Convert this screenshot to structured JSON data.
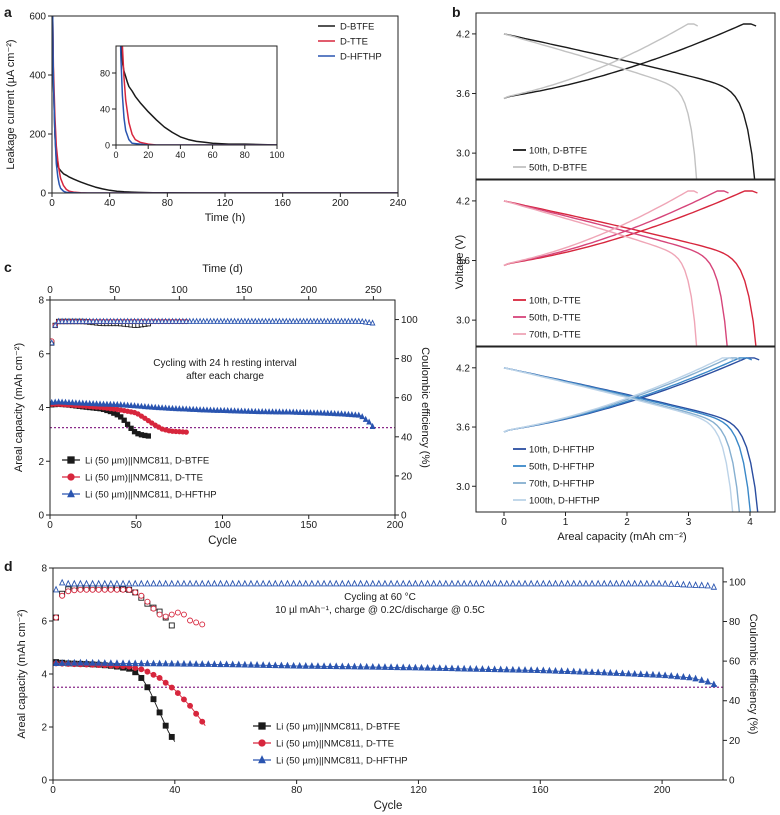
{
  "colors": {
    "black": "#1a1a1a",
    "red": "#d7263d",
    "blue": "#2a55b0",
    "grey": "#c2c2c2",
    "purple": "#8a2a8a",
    "axis": "#222222"
  },
  "chart_data": [
    {
      "id": "a",
      "panel_label": "a",
      "type": "line",
      "xlabel": "Time (h)",
      "ylabel": "Leakage current (µA cm⁻²)",
      "xlim": [
        0,
        240
      ],
      "ylim": [
        0,
        600
      ],
      "xticks": [
        0,
        40,
        80,
        120,
        160,
        200,
        240
      ],
      "yticks": [
        0,
        200,
        400,
        600
      ],
      "legend": [
        "D-BTFE",
        "D-TTE",
        "D-HFTHP"
      ],
      "series": [
        {
          "name": "D-BTFE",
          "color": "#1a1a1a",
          "x": [
            0.5,
            1,
            2,
            3,
            4,
            5,
            6,
            7,
            8,
            10,
            12,
            15,
            18,
            20,
            25,
            30,
            35,
            40,
            45,
            50,
            55,
            60,
            70,
            80,
            100,
            120,
            160,
            200,
            240
          ],
          "y": [
            600,
            380,
            200,
            120,
            92,
            82,
            76,
            70,
            65,
            60,
            54,
            47,
            41,
            37,
            28,
            20,
            14,
            9,
            6,
            4,
            3,
            2,
            1,
            1,
            0,
            0,
            0,
            0,
            0
          ]
        },
        {
          "name": "D-TTE",
          "color": "#d7263d",
          "x": [
            0.5,
            1,
            2,
            3,
            4,
            5,
            6,
            8,
            10,
            12,
            15,
            20,
            25,
            30,
            60,
            100,
            240
          ],
          "y": [
            600,
            430,
            260,
            160,
            110,
            75,
            50,
            25,
            12,
            6,
            3,
            1,
            0,
            0,
            0,
            0,
            0
          ]
        },
        {
          "name": "D-HFTHP",
          "color": "#2a55b0",
          "x": [
            0.5,
            1,
            2,
            3,
            4,
            5,
            6,
            8,
            10,
            15,
            20,
            240
          ],
          "y": [
            600,
            380,
            200,
            100,
            55,
            30,
            16,
            6,
            2,
            1,
            0,
            0
          ]
        }
      ],
      "inset": {
        "xlim": [
          0,
          100
        ],
        "ylim": [
          0,
          110
        ],
        "xticks": [
          0,
          20,
          40,
          60,
          80,
          100
        ],
        "yticks": [
          0,
          40,
          80
        ]
      }
    },
    {
      "id": "b",
      "panel_label": "b",
      "type": "line",
      "xlabel": "Areal capacity (mAh cm⁻²)",
      "ylabel": "Voltage (V)",
      "xlim": [
        0,
        4.6
      ],
      "ylim": [
        2.8,
        4.35
      ],
      "xticks": [
        0,
        1,
        2,
        3,
        4
      ],
      "yticks": [
        3.0,
        3.6,
        4.2
      ],
      "subpanels": [
        {
          "name": "D-BTFE",
          "series": [
            {
              "name": "10th, D-BTFE",
              "color": "#1a1a1a",
              "capacity": 4.1
            },
            {
              "name": "50th, D-BTFE",
              "color": "#c2c2c2",
              "capacity": 3.15
            }
          ]
        },
        {
          "name": "D-TTE",
          "series": [
            {
              "name": "10th, D-TTE",
              "color": "#d7263d",
              "capacity": 4.12
            },
            {
              "name": "50th, D-TTE",
              "color": "#d6457a",
              "capacity": 3.65
            },
            {
              "name": "70th, D-TTE",
              "color": "#efa5b6",
              "capacity": 3.15
            }
          ]
        },
        {
          "name": "D-HFTHP",
          "series": [
            {
              "name": "10th, D-HFTHP",
              "color": "#2b4ea0",
              "capacity": 4.15
            },
            {
              "name": "50th, D-HFTHP",
              "color": "#3a88c8",
              "capacity": 4.03
            },
            {
              "name": "70th, D-HFTHP",
              "color": "#86afd0",
              "capacity": 3.85
            },
            {
              "name": "100th, D-HFTHP",
              "color": "#bcd3e8",
              "capacity": 3.74
            }
          ]
        }
      ]
    },
    {
      "id": "c",
      "panel_label": "c",
      "type": "scatter",
      "xlabel": "Cycle",
      "x2label": "Time (d)",
      "ylabel": "Areal capacity (mAh cm⁻²)",
      "y2label": "Coulombic efficiency (%)",
      "xlim": [
        0,
        200
      ],
      "x2lim": [
        0,
        266.7
      ],
      "ylim": [
        0,
        8
      ],
      "y2lim": [
        0,
        110
      ],
      "xticks": [
        0,
        50,
        100,
        150,
        200
      ],
      "x2ticks": [
        0,
        50,
        100,
        150,
        200,
        250
      ],
      "yticks": [
        0,
        2,
        4,
        6,
        8
      ],
      "y2ticks": [
        0,
        20,
        40,
        60,
        80,
        100
      ],
      "annotation": [
        "Cycling with 24 h resting interval",
        "after each charge"
      ],
      "threshold": 3.25,
      "legend": [
        "Li (50 µm)||NMC811, D-BTFE",
        "Li (50 µm)||NMC811, D-TTE",
        "Li (50 µm)||NMC811, D-HFTHP"
      ],
      "series": [
        {
          "name": "D-BTFE",
          "color": "#1a1a1a",
          "marker": "square",
          "capacity_x": [
            1,
            5,
            10,
            20,
            30,
            35,
            40,
            42,
            44,
            46,
            48,
            50,
            52,
            54,
            56,
            58
          ],
          "capacity_y": [
            4.1,
            4.12,
            4.1,
            4.02,
            3.95,
            3.85,
            3.7,
            3.6,
            3.45,
            3.3,
            3.15,
            3.05,
            3.0,
            2.97,
            2.95,
            2.93
          ],
          "ce_x": [
            1,
            3,
            5,
            10,
            20,
            30,
            40,
            50,
            58
          ],
          "ce_y": [
            88,
            97,
            99,
            99,
            99,
            98,
            98,
            97,
            98
          ]
        },
        {
          "name": "D-TTE",
          "color": "#d7263d",
          "marker": "circle",
          "capacity_x": [
            1,
            5,
            10,
            20,
            30,
            40,
            50,
            55,
            60,
            65,
            70,
            75,
            80
          ],
          "capacity_y": [
            4.12,
            4.12,
            4.1,
            4.05,
            4.0,
            3.92,
            3.8,
            3.6,
            3.38,
            3.2,
            3.12,
            3.1,
            3.08
          ],
          "ce_x": [
            1,
            3,
            5,
            20,
            40,
            60,
            80
          ],
          "ce_y": [
            89,
            97,
            99,
            99,
            99,
            99,
            99
          ]
        },
        {
          "name": "D-HFTHP",
          "color": "#2a55b0",
          "marker": "triangle",
          "capacity_x": [
            1,
            5,
            10,
            20,
            30,
            40,
            50,
            60,
            70,
            80,
            90,
            100,
            110,
            120,
            130,
            140,
            150,
            160,
            170,
            180,
            185,
            188
          ],
          "capacity_y": [
            4.18,
            4.2,
            4.18,
            4.15,
            4.12,
            4.1,
            4.05,
            4.0,
            3.96,
            3.93,
            3.9,
            3.88,
            3.86,
            3.84,
            3.83,
            3.82,
            3.8,
            3.78,
            3.75,
            3.7,
            3.45,
            3.2
          ],
          "ce_x": [
            1,
            3,
            5,
            20,
            40,
            60,
            80,
            100,
            120,
            140,
            160,
            180,
            188
          ],
          "ce_y": [
            88,
            97,
            99,
            99,
            99,
            99,
            99,
            99,
            99,
            99,
            99,
            99,
            98
          ]
        }
      ]
    },
    {
      "id": "d",
      "panel_label": "d",
      "type": "scatter",
      "xlabel": "Cycle",
      "ylabel": "Areal capacity (mAh cm⁻²)",
      "y2label": "Coulombic efficiency (%)",
      "xlim": [
        0,
        220
      ],
      "ylim": [
        0,
        8
      ],
      "y2lim": [
        0,
        107
      ],
      "xticks": [
        0,
        40,
        80,
        120,
        160,
        200
      ],
      "yticks": [
        0,
        2,
        4,
        6,
        8
      ],
      "y2ticks": [
        0,
        20,
        40,
        60,
        80,
        100
      ],
      "annotation": [
        "Cycling at 60 °C",
        "10 µl mAh⁻¹, charge @ 0.2C/discharge @ 0.5C"
      ],
      "threshold": 3.5,
      "legend": [
        "Li (50 µm)||NMC811, D-BTFE",
        "Li (50 µm)||NMC811, D-TTE",
        "Li (50 µm)||NMC811, D-HFTHP"
      ],
      "series": [
        {
          "name": "D-BTFE",
          "color": "#1a1a1a",
          "marker": "square",
          "capacity_x": [
            1,
            5,
            10,
            15,
            20,
            25,
            28,
            30,
            32,
            34,
            36,
            38,
            40
          ],
          "capacity_y": [
            4.45,
            4.4,
            4.38,
            4.35,
            4.3,
            4.2,
            4.0,
            3.7,
            3.3,
            2.8,
            2.3,
            1.8,
            1.45
          ],
          "ce_x": [
            1,
            2,
            4,
            8,
            15,
            20,
            25,
            28,
            30,
            32,
            34,
            36,
            38,
            40
          ],
          "ce_y": [
            82,
            92,
            96,
            97,
            97,
            97,
            96,
            94,
            90,
            88,
            86,
            84,
            80,
            76
          ]
        },
        {
          "name": "D-TTE",
          "color": "#d7263d",
          "marker": "circle",
          "capacity_x": [
            1,
            5,
            10,
            15,
            20,
            25,
            30,
            35,
            40,
            45,
            48,
            50
          ],
          "capacity_y": [
            4.4,
            4.38,
            4.36,
            4.34,
            4.32,
            4.28,
            4.15,
            3.85,
            3.4,
            2.8,
            2.35,
            2.05
          ],
          "ce_x": [
            1,
            2,
            4,
            8,
            15,
            20,
            25,
            28,
            30,
            32,
            34,
            36,
            38,
            40,
            42,
            44,
            46,
            48,
            50
          ],
          "ce_y": [
            82,
            91,
            95,
            96,
            96,
            96,
            96,
            94,
            92,
            88,
            85,
            82,
            83,
            84,
            85,
            82,
            79,
            80,
            77
          ]
        },
        {
          "name": "D-HFTHP",
          "color": "#2a55b0",
          "marker": "triangle",
          "capacity_x": [
            1,
            10,
            20,
            40,
            60,
            80,
            100,
            120,
            140,
            160,
            180,
            200,
            210,
            215,
            218
          ],
          "capacity_y": [
            4.4,
            4.42,
            4.4,
            4.38,
            4.35,
            4.3,
            4.27,
            4.23,
            4.18,
            4.13,
            4.05,
            3.95,
            3.85,
            3.7,
            3.55
          ],
          "ce_x": [
            1,
            2,
            4,
            10,
            40,
            80,
            120,
            160,
            200,
            215,
            218
          ],
          "ce_y": [
            96,
            100,
            99,
            99,
            99,
            99,
            99,
            99,
            99,
            98,
            97
          ]
        }
      ]
    }
  ]
}
